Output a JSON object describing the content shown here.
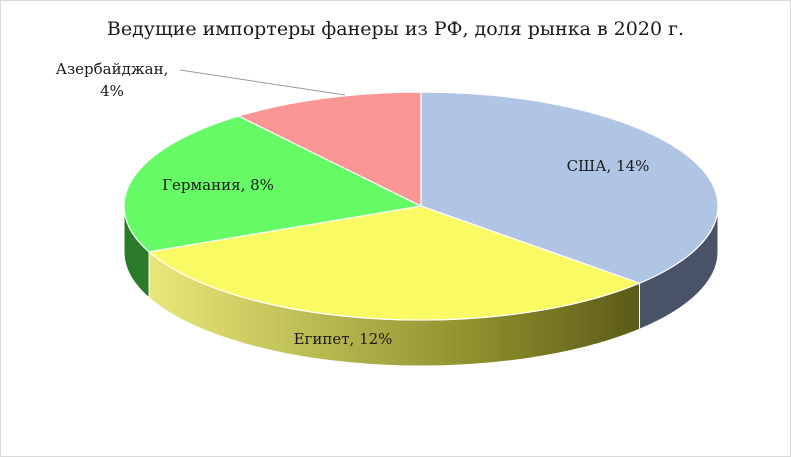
{
  "chart_data": {
    "type": "pie",
    "title": "Ведущие импортеры фанеры из РФ, доля рынка в 2020 г.",
    "categories": [
      "США",
      "Египет",
      "Германия",
      "Азербайджан"
    ],
    "values": [
      14,
      12,
      8,
      4
    ],
    "unit": "%",
    "labels": [
      "США, 14%",
      "Египет, 12%",
      "Германия, 8%",
      "Азербайджан,",
      "4%"
    ],
    "colors": [
      "#b0c4e4",
      "#fafa64",
      "#66fa66",
      "#fa9696"
    ],
    "side_colors": [
      "#4a5268",
      "#6b6b1e",
      "#2a7a2a",
      "#a05050"
    ],
    "style": "3d-pie"
  }
}
